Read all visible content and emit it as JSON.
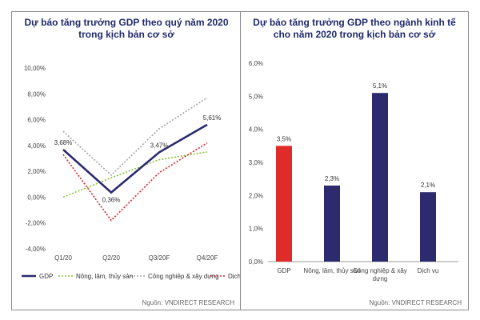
{
  "chart_data": [
    {
      "type": "line",
      "title": "Dự báo tăng trưởng GDP theo quý năm 2020 trong kịch bản cơ sở",
      "source": "Nguồn: VNDIRECT RESEARCH",
      "categories": [
        "Q1/20",
        "Q2/20",
        "Q3/20F",
        "Q4/20F"
      ],
      "ylim": [
        -4,
        10
      ],
      "yticks": [
        "-4,00%",
        "-2,00%",
        "0,00%",
        "2,00%",
        "4,00%",
        "6,00%",
        "8,00%",
        "10,00%"
      ],
      "series": [
        {
          "name": "GDP",
          "values": [
            3.68,
            0.36,
            3.47,
            5.61
          ],
          "color": "#2c2a6e",
          "style": "solid",
          "labels": [
            "3,68%",
            "0,36%",
            "3,47%",
            "5,61%"
          ]
        },
        {
          "name": "Nông, lâm, thủy sản",
          "values": [
            0.0,
            1.5,
            2.9,
            3.5
          ],
          "color": "#8bbf3a",
          "style": "dotted"
        },
        {
          "name": "Công nghiệp & xây dựng",
          "values": [
            5.1,
            1.7,
            5.3,
            7.7
          ],
          "color": "#a5a5a5",
          "style": "dotted"
        },
        {
          "name": "Dịch vụ",
          "values": [
            3.3,
            -1.8,
            1.9,
            4.2
          ],
          "color": "#d9232d",
          "style": "dotted"
        }
      ]
    },
    {
      "type": "bar",
      "title": "Dự báo tăng trưởng GDP theo ngành kinh tế cho năm 2020 trong kịch bản cơ sở",
      "source": "Nguồn: VNDIRECT RESEARCH",
      "categories": [
        "GDP",
        "Nông, lâm, thủy sản",
        "Công nghiệp & xây dựng",
        "Dịch vụ"
      ],
      "values": [
        3.5,
        2.3,
        5.1,
        2.1
      ],
      "labels": [
        "3,5%",
        "2,3%",
        "5,1%",
        "2,1%"
      ],
      "colors": [
        "#e02b2b",
        "#2e2a6e",
        "#2e2a6e",
        "#2e2a6e"
      ],
      "ylim": [
        0,
        6
      ],
      "yticks": [
        "0,0%",
        "1,0%",
        "2,0%",
        "3,0%",
        "4,0%",
        "5,0%",
        "6,0%"
      ]
    }
  ]
}
